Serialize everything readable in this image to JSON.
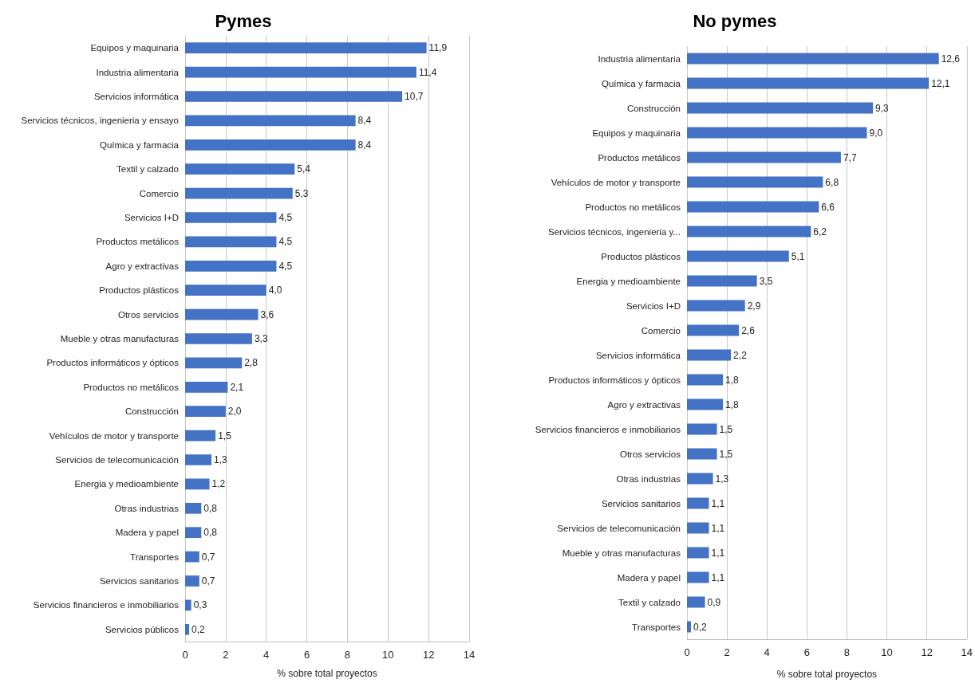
{
  "chart_data": [
    {
      "type": "bar",
      "title": "Pymes",
      "orientation": "horizontal",
      "xlabel": "% sobre total proyectos",
      "color": "#4472c4",
      "grid": "x",
      "xlim": [
        0,
        14
      ],
      "xticks": [
        0,
        2,
        4,
        6,
        8,
        10,
        12,
        14
      ],
      "categories": [
        "Equipos y maquinaria",
        "Industria alimentaria",
        "Servicios informática",
        "Servicios técnicos, ingenieria y ensayo",
        "Química y farmacia",
        "Textil y calzado",
        "Comercio",
        "Servicios I+D",
        "Productos metálicos",
        "Agro y extractivas",
        "Productos plásticos",
        "Otros servicios",
        "Mueble y otras manufacturas",
        "Productos informáticos y ópticos",
        "Productos no metálicos",
        "Construcción",
        "Vehículos de motor y transporte",
        "Servicios de telecomunicación",
        "Energia y medioambiente",
        "Otras industrias",
        "Madera y papel",
        "Transportes",
        "Servicios sanitarios",
        "Servicios financieros e inmobiliarios",
        "Servicios públicos"
      ],
      "values": [
        11.9,
        11.4,
        10.7,
        8.4,
        8.4,
        5.4,
        5.3,
        4.5,
        4.5,
        4.5,
        4.0,
        3.6,
        3.3,
        2.8,
        2.1,
        2.0,
        1.5,
        1.3,
        1.2,
        0.8,
        0.8,
        0.7,
        0.7,
        0.3,
        0.2
      ],
      "value_labels": [
        "11,9",
        "11,4",
        "10,7",
        "8,4",
        "8,4",
        "5,4",
        "5,3",
        "4,5",
        "4,5",
        "4,5",
        "4,0",
        "3,6",
        "3,3",
        "2,8",
        "2,1",
        "2,0",
        "1,5",
        "1,3",
        "1,2",
        "0,8",
        "0,8",
        "0,7",
        "0,7",
        "0,3",
        "0,2"
      ]
    },
    {
      "type": "bar",
      "title": "No pymes",
      "orientation": "horizontal",
      "xlabel": "% sobre total proyectos",
      "color": "#4472c4",
      "grid": "x",
      "xlim": [
        0,
        14
      ],
      "xticks": [
        0,
        2,
        4,
        6,
        8,
        10,
        12,
        14
      ],
      "categories": [
        "Industria alimentaria",
        "Química y farmacia",
        "Construcción",
        "Equipos y maquinaria",
        "Productos metálicos",
        "Vehículos de motor y transporte",
        "Productos no metálicos",
        "Servicios técnicos, ingenieria y...",
        "Productos plásticos",
        "Energia y medioambiente",
        "Servicios I+D",
        "Comercio",
        "Servicios informática",
        "Productos informáticos y ópticos",
        "Agro y extractivas",
        "Servicios financieros e inmobiliarios",
        "Otros servicios",
        "Otras industrias",
        "Servicios sanitarios",
        "Servicios de telecomunicación",
        "Mueble y otras manufacturas",
        "Madera y papel",
        "Textil y calzado",
        "Transportes"
      ],
      "values": [
        12.6,
        12.1,
        9.3,
        9.0,
        7.7,
        6.8,
        6.6,
        6.2,
        5.1,
        3.5,
        2.9,
        2.6,
        2.2,
        1.8,
        1.8,
        1.5,
        1.5,
        1.3,
        1.1,
        1.1,
        1.1,
        1.1,
        0.9,
        0.2
      ],
      "value_labels": [
        "12,6",
        "12,1",
        "9,3",
        "9,0",
        "7,7",
        "6,8",
        "6,6",
        "6,2",
        "5,1",
        "3,5",
        "2,9",
        "2,6",
        "2,2",
        "1,8",
        "1,8",
        "1,5",
        "1,5",
        "1,3",
        "1,1",
        "1,1",
        "1,1",
        "1,1",
        "0,9",
        "0,2"
      ]
    }
  ]
}
